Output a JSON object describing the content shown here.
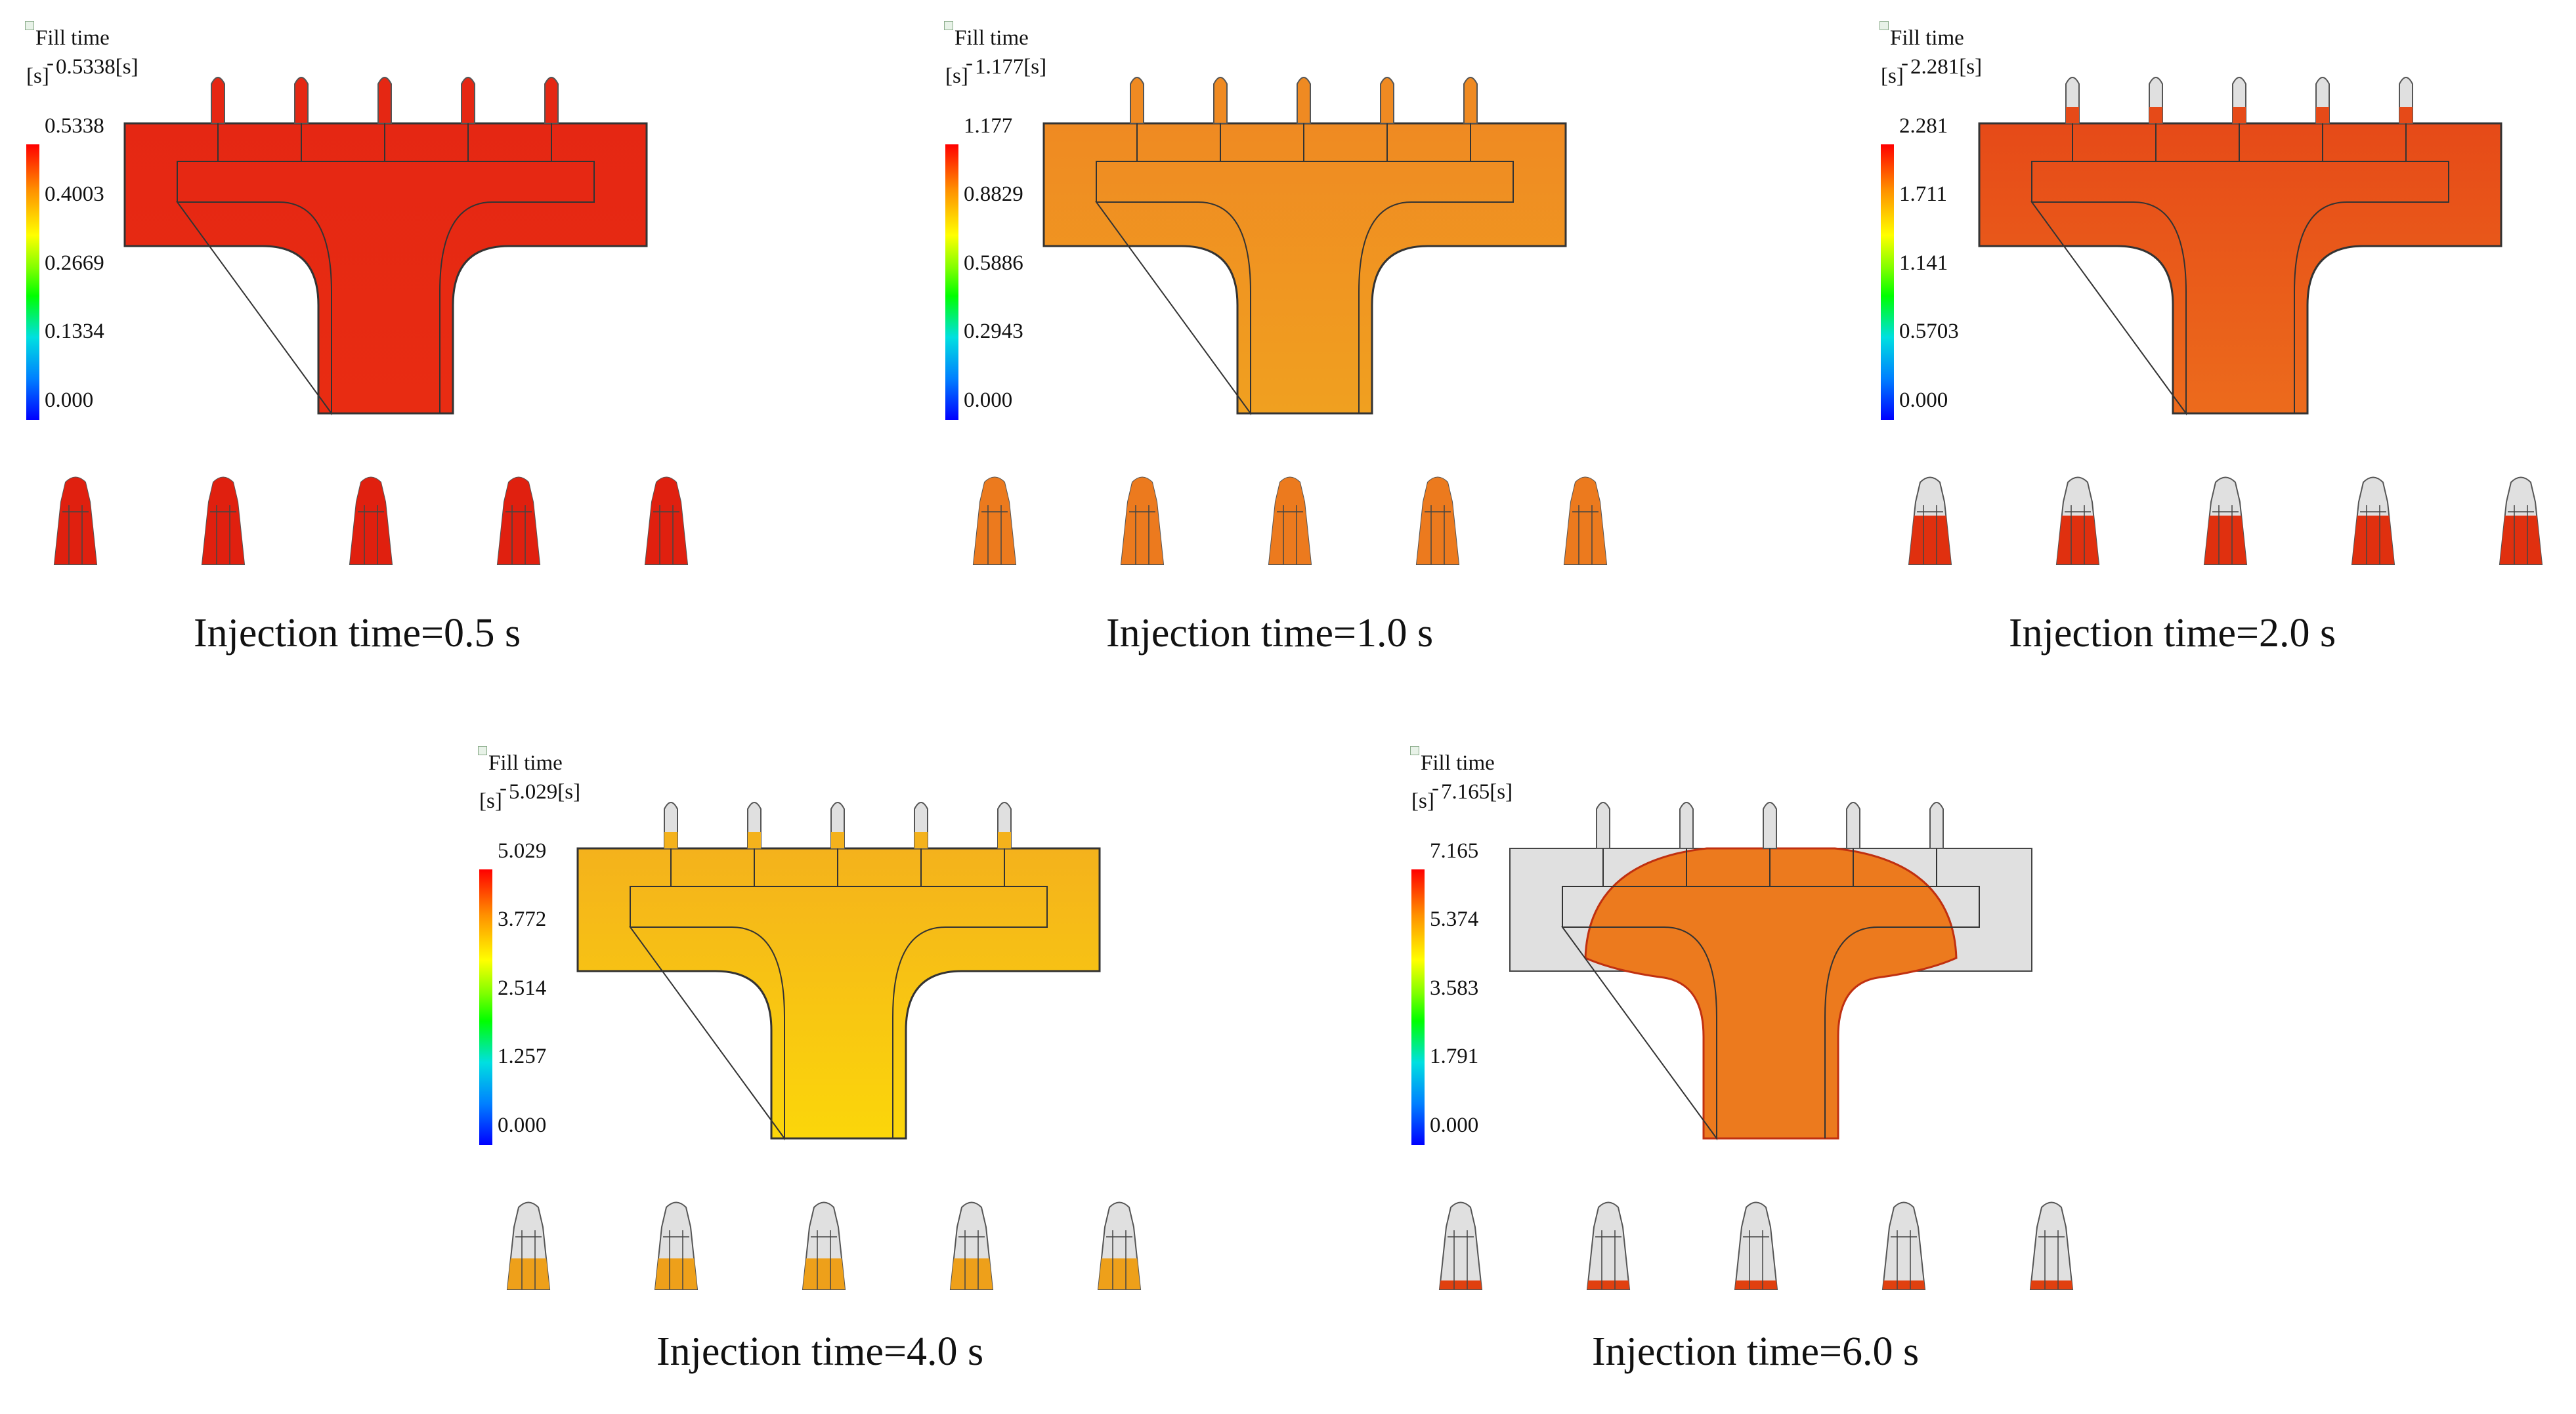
{
  "legend": {
    "title": "Fill time",
    "unit": "[s]"
  },
  "panels": [
    {
      "caption": "Injection time=0.5 s",
      "max_label": "0.5338[s]",
      "ticks": [
        "0.5338",
        "0.4003",
        "0.2669",
        "0.1334",
        "0.000"
      ],
      "colors": {
        "upper": "#e52713",
        "stem": "#e82c12",
        "part": "#e0200f"
      },
      "fill_fraction": 1.0,
      "region_filled": "full"
    },
    {
      "caption": "Injection time=1.0 s",
      "max_label": "1.177[s]",
      "ticks": [
        "1.177",
        "0.8829",
        "0.5886",
        "0.2943",
        "0.000"
      ],
      "colors": {
        "upper": "#ef8a22",
        "stem": "#f0a020",
        "part": "#ec7a1e"
      },
      "fill_fraction": 1.0,
      "region_filled": "full"
    },
    {
      "caption": "Injection time=2.0 s",
      "max_label": "2.281[s]",
      "ticks": [
        "2.281",
        "1.711",
        "1.141",
        "0.5703",
        "0.000"
      ],
      "colors": {
        "upper": "#e64a18",
        "stem": "#ec6b1c",
        "part": "#e0300f"
      },
      "fill_fraction": 0.55,
      "region_filled": "full"
    },
    {
      "caption": "Injection time=4.0 s",
      "max_label": "5.029[s]",
      "ticks": [
        "5.029",
        "3.772",
        "2.514",
        "1.257",
        "0.000"
      ],
      "colors": {
        "upper": "#f4b21c",
        "stem": "#fbd60a",
        "part": "#eea01a"
      },
      "fill_fraction": 0.35,
      "region_filled": "full"
    },
    {
      "caption": "Injection time=6.0 s",
      "max_label": "7.165[s]",
      "ticks": [
        "7.165",
        "5.374",
        "3.583",
        "1.791",
        "0.000"
      ],
      "colors": {
        "upper": "#ec7a1e",
        "stem": "#ef8a22",
        "part": "#e0400f"
      },
      "fill_fraction": 0.1,
      "region_filled": "partial"
    }
  ]
}
